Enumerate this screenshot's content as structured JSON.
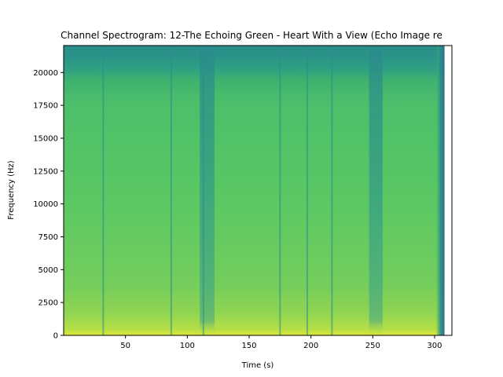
{
  "chart_data": {
    "type": "heatmap",
    "title": "Channel Spectrogram: 12-The Echoing Green - Heart With a View (Echo Image re",
    "xlabel": "Time (s)",
    "ylabel": "Frequency (Hz)",
    "xlim": [
      0,
      314
    ],
    "ylim": [
      0,
      22050
    ],
    "x_ticks": [
      50,
      100,
      150,
      200,
      250,
      300
    ],
    "x_tick_labels": [
      "50",
      "100",
      "150",
      "200",
      "250",
      "300"
    ],
    "y_ticks": [
      0,
      2500,
      5000,
      7500,
      10000,
      12500,
      15000,
      17500,
      20000
    ],
    "y_tick_labels": [
      "0",
      "2500",
      "5000",
      "7500",
      "10000",
      "12500",
      "15000",
      "17500",
      "20000"
    ],
    "colormap": "viridis",
    "grid": false,
    "content_end_time": 308,
    "quiet_sections": [
      {
        "start": 110,
        "end": 122
      },
      {
        "start": 247,
        "end": 258
      }
    ],
    "transient_lines": [
      32,
      87,
      113,
      175,
      197,
      217
    ],
    "colors": {
      "high": "#e0e63a",
      "mid": "#5cc863",
      "low": "#3aa08c",
      "top_band": "#2a8d8a",
      "end_fade": "#2f6f8e"
    }
  }
}
